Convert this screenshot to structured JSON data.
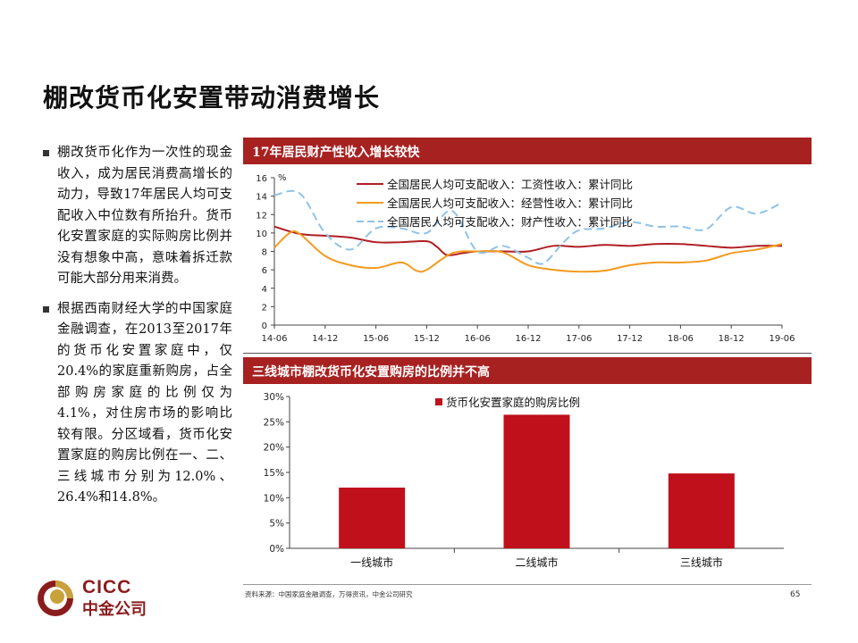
{
  "title": "棚改货币化安置带动消费增长",
  "bullets": [
    "棚改货币化作为一次性的现金收入，成为居民消费高增长的动力，导致17年居民人均可支配收入中位数有所抬升。货币化安置家庭的实际购房比例并没有想象中高，意味着拆迁款可能大部分用来消费。",
    "根据西南财经大学的中国家庭金融调查，在2013至2017年的货币化安置家庭中，仅20.4%的家庭重新购房，占全部购房家庭的比例仅为4.1%，对住房市场的影响比较有限。分区域看，货币化安置家庭的购房比例在一、二、三线城市分别为12.0%、26.4%和14.8%。"
  ],
  "panel1": {
    "header": "17年居民财产性收入增长较快",
    "unit": "%"
  },
  "panel2": {
    "header": "三线城市棚改货币化安置购房的比例并不高"
  },
  "colors": {
    "accent": "#a72121",
    "wage": "#b01e24",
    "business": "#f39a1e",
    "property": "#8fc2e8",
    "bar": "#c0101b"
  },
  "chart_data": [
    {
      "type": "line",
      "title": "17年居民财产性收入增长较快",
      "ylabel": "%",
      "ylim": [
        0,
        16
      ],
      "yticks": [
        "0",
        "2",
        "4",
        "6",
        "8",
        "10",
        "12",
        "14",
        "16"
      ],
      "xticks": [
        "14-06",
        "14-12",
        "15-06",
        "15-12",
        "16-06",
        "16-12",
        "17-06",
        "17-12",
        "18-06",
        "18-12",
        "19-06"
      ],
      "series": [
        {
          "name": "全国居民人均可支配收入：工资性收入：累计同比",
          "style": "solid",
          "points": [
            [
              0,
              10.7
            ],
            [
              0.5,
              9.9
            ],
            [
              1,
              9.7
            ],
            [
              1.5,
              9.5
            ],
            [
              2,
              9.0
            ],
            [
              2.5,
              9.0
            ],
            [
              3,
              9.1
            ],
            [
              3.2,
              8.5
            ],
            [
              3.4,
              7.6
            ],
            [
              3.7,
              7.8
            ],
            [
              4,
              8.0
            ],
            [
              4.5,
              8.0
            ],
            [
              5,
              8.0
            ],
            [
              5.5,
              8.6
            ],
            [
              6,
              8.5
            ],
            [
              6.5,
              8.7
            ],
            [
              7,
              8.6
            ],
            [
              7.5,
              8.8
            ],
            [
              8,
              8.8
            ],
            [
              8.5,
              8.6
            ],
            [
              9,
              8.4
            ],
            [
              9.5,
              8.6
            ],
            [
              10,
              8.6
            ]
          ]
        },
        {
          "name": "全国居民人均可支配收入：经营性收入：累计同比",
          "style": "solid",
          "points": [
            [
              0,
              8.4
            ],
            [
              0.3,
              10.0
            ],
            [
              0.5,
              9.9
            ],
            [
              1,
              7.5
            ],
            [
              1.5,
              6.5
            ],
            [
              2,
              6.2
            ],
            [
              2.5,
              6.8
            ],
            [
              2.8,
              5.9
            ],
            [
              3,
              6.0
            ],
            [
              3.5,
              7.8
            ],
            [
              4,
              8.0
            ],
            [
              4.5,
              7.9
            ],
            [
              5,
              6.5
            ],
            [
              5.5,
              6.0
            ],
            [
              6,
              5.8
            ],
            [
              6.5,
              5.9
            ],
            [
              7,
              6.5
            ],
            [
              7.5,
              6.8
            ],
            [
              8,
              6.8
            ],
            [
              8.5,
              7.0
            ],
            [
              9,
              7.8
            ],
            [
              9.5,
              8.2
            ],
            [
              10,
              8.8
            ]
          ]
        },
        {
          "name": "全国居民人均可支配收入：财产性收入：累计同比",
          "style": "dashed",
          "points": [
            [
              0,
              14.1
            ],
            [
              0.5,
              14.3
            ],
            [
              1,
              10.0
            ],
            [
              1.5,
              8.2
            ],
            [
              2,
              10.5
            ],
            [
              2.5,
              10.5
            ],
            [
              3,
              10.0
            ],
            [
              3.5,
              12.4
            ],
            [
              4,
              8.0
            ],
            [
              4.5,
              8.6
            ],
            [
              5,
              7.3
            ],
            [
              5.3,
              6.7
            ],
            [
              5.7,
              9.0
            ],
            [
              6,
              10.3
            ],
            [
              6.5,
              10.5
            ],
            [
              7,
              11.2
            ],
            [
              7.5,
              10.7
            ],
            [
              8,
              10.7
            ],
            [
              8.5,
              10.4
            ],
            [
              9,
              12.8
            ],
            [
              9.5,
              12.1
            ],
            [
              10,
              13.3
            ]
          ]
        }
      ]
    },
    {
      "type": "bar",
      "title": "三线城市棚改货币化安置购房的比例并不高",
      "categories": [
        "一线城市",
        "二线城市",
        "三线城市"
      ],
      "series": [
        {
          "name": "货币化安置家庭的购房比例",
          "values": [
            12.0,
            26.4,
            14.8
          ]
        }
      ],
      "ylim": [
        0,
        30
      ],
      "yticks": [
        "0%",
        "5%",
        "10%",
        "15%",
        "20%",
        "25%",
        "30%"
      ]
    }
  ],
  "footer": {
    "source": "资料来源：中国家庭金融调查，万得资讯，中金公司研究",
    "page": "65"
  },
  "logo": {
    "text_en": "CICC",
    "text_cn": "中金公司"
  }
}
